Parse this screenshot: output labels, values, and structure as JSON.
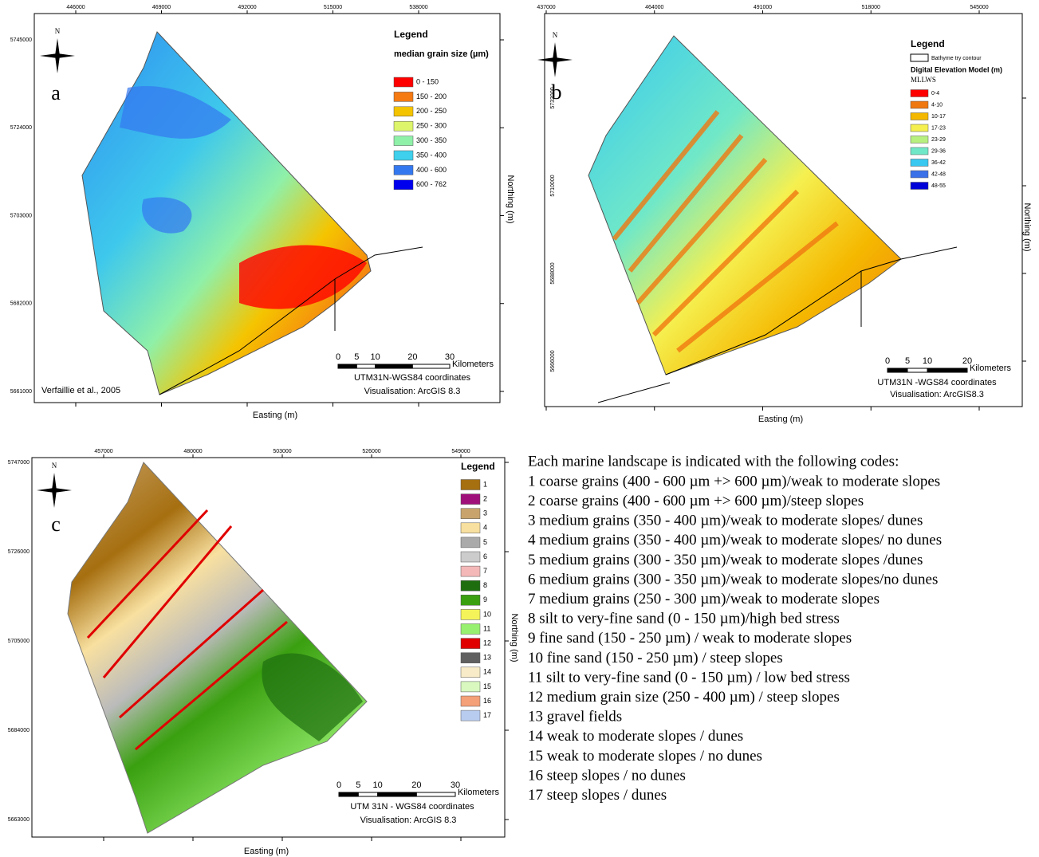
{
  "panels": [
    {
      "label": "a",
      "north": "N",
      "top_ticks": [
        446000,
        469000,
        492000,
        515000,
        538000
      ],
      "left_ticks": [
        5745000,
        5724000,
        5703000,
        5682000,
        5661000
      ],
      "legend": {
        "title": "Legend",
        "subtitle": "median grain size (µm)",
        "items": [
          {
            "label": "0 - 150",
            "color": "#ff0000"
          },
          {
            "label": "150 - 200",
            "color": "#f57a12"
          },
          {
            "label": "200 - 250",
            "color": "#f5c400"
          },
          {
            "label": "250 - 300",
            "color": "#ddf56a"
          },
          {
            "label": "300 - 350",
            "color": "#8ff0a8"
          },
          {
            "label": "350 - 400",
            "color": "#3ed0ec"
          },
          {
            "label": "400 - 600",
            "color": "#3478f0"
          },
          {
            "label": "600 - 762",
            "color": "#0000ee"
          }
        ]
      },
      "scale": {
        "ticks": [
          0,
          5,
          10,
          20,
          30
        ],
        "unit": "Kilometers"
      },
      "coordinates": "UTM31N-WGS84 coordinates",
      "visualisation": "Visualisation: ArcGIS 8.3",
      "credit": "Verfaillie et al., 2005",
      "x_label": "Easting (m)",
      "y_label": "Northing (m)"
    },
    {
      "label": "b",
      "north": "N",
      "top_ticks": [
        437000,
        464000,
        491000,
        518000,
        545000
      ],
      "left_ticks": [
        5732000,
        5710000,
        5688000,
        5666000
      ],
      "legend": {
        "title": "Legend",
        "box_item": "Bathyme try contour",
        "subtitle": "Digital Elevation Model (m)",
        "note": "MLLWS",
        "items": [
          {
            "label": "0-4",
            "color": "#ff0000"
          },
          {
            "label": "4-10",
            "color": "#f07810"
          },
          {
            "label": "10-17",
            "color": "#f5b800"
          },
          {
            "label": "17-23",
            "color": "#f5f050"
          },
          {
            "label": "23-29",
            "color": "#b8f080"
          },
          {
            "label": "29-36",
            "color": "#70e8c8"
          },
          {
            "label": "36-42",
            "color": "#38c8f0"
          },
          {
            "label": "42-48",
            "color": "#3a70e8"
          },
          {
            "label": "48-55",
            "color": "#0000d8"
          }
        ]
      },
      "scale": {
        "ticks": [
          0,
          5,
          10,
          20
        ],
        "unit": "Kilometers"
      },
      "coordinates": "UTM31N -WGS84 coordinates",
      "visualisation": "Visualisation: ArcGIS8.3",
      "x_label": "Easting (m)",
      "y_label": "Northing (m)"
    },
    {
      "label": "c",
      "north": "N",
      "top_ticks": [
        457000,
        480000,
        503000,
        526000,
        549000
      ],
      "left_ticks": [
        5747000,
        5726000,
        5705000,
        5684000,
        5663000
      ],
      "legend": {
        "title": "Legend",
        "items": [
          {
            "label": "1",
            "color": "#a66f10"
          },
          {
            "label": "2",
            "color": "#a0107a"
          },
          {
            "label": "3",
            "color": "#c8a46c"
          },
          {
            "label": "4",
            "color": "#f8e0a0"
          },
          {
            "label": "5",
            "color": "#aaaaaa"
          },
          {
            "label": "6",
            "color": "#cccccc"
          },
          {
            "label": "7",
            "color": "#f4b8b8"
          },
          {
            "label": "8",
            "color": "#1e6e10"
          },
          {
            "label": "9",
            "color": "#3aa010"
          },
          {
            "label": "10",
            "color": "#f4f45a"
          },
          {
            "label": "11",
            "color": "#98f070"
          },
          {
            "label": "12",
            "color": "#e00000"
          },
          {
            "label": "13",
            "color": "#606060"
          },
          {
            "label": "14",
            "color": "#f8ecc8"
          },
          {
            "label": "15",
            "color": "#d8f8c0"
          },
          {
            "label": "16",
            "color": "#f4a078"
          },
          {
            "label": "17",
            "color": "#b8ccf0"
          }
        ]
      },
      "scale": {
        "ticks": [
          0,
          5,
          10,
          20,
          30
        ],
        "unit": "Kilometers"
      },
      "coordinates": "UTM 31N - WGS84 coordinates",
      "visualisation": "Visualisation: ArcGIS 8.3",
      "x_label": "Easting (m)",
      "y_label": "Northing (m)"
    }
  ],
  "description": {
    "intro": "Each marine landscape is indicated with the following codes:",
    "items": [
      "1 coarse grains (400 - 600 µm +> 600 µm)/weak to moderate slopes",
      "2 coarse grains (400 - 600 µm +> 600 µm)/steep slopes",
      "3 medium grains (350 - 400 µm)/weak to moderate slopes/ dunes",
      "4 medium grains (350 - 400 µm)/weak to moderate slopes/ no dunes",
      "5 medium grains (300 - 350 µm)/weak to moderate slopes /dunes",
      "6 medium grains (300 - 350 µm)/weak to moderate slopes/no dunes",
      "7 medium grains (250 - 300 µm)/weak to moderate slopes",
      "8 silt to very-fine sand (0 - 150 µm)/high bed stress",
      "9 fine sand (150 - 250 µm) / weak to moderate slopes",
      "10 fine sand (150 - 250 µm) / steep slopes",
      "11 silt to very-fine sand (0 - 150 µm) / low bed stress",
      "12 medium grain size (250 - 400 µm) / steep slopes",
      "13 gravel fields",
      "14 weak to moderate slopes / dunes",
      "15 weak to moderate slopes / no dunes",
      "16 steep slopes / no dunes",
      "17 steep slopes / dunes"
    ]
  }
}
